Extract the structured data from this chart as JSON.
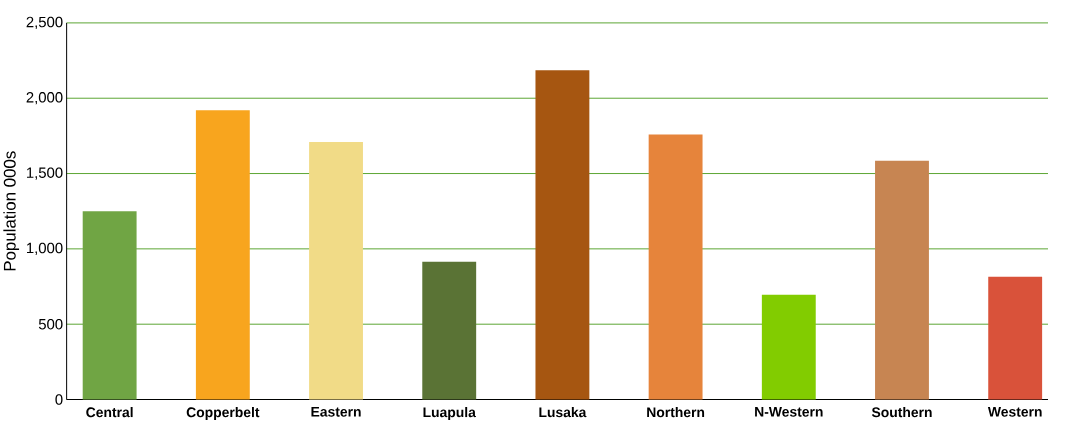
{
  "chart_data": {
    "type": "bar",
    "ylabel": "Population 000s",
    "categories": [
      "Central",
      "Copperbelt",
      "Eastern",
      "Luapula",
      "Lusaka",
      "Northern",
      "N-Western",
      "Southern",
      "Western"
    ],
    "values": [
      1250,
      1920,
      1710,
      915,
      2185,
      1760,
      695,
      1585,
      815
    ],
    "colors": [
      "#70a544",
      "#f8a51e",
      "#f1db87",
      "#5a7335",
      "#a65611",
      "#e6843b",
      "#82cc00",
      "#c78552",
      "#d9523a"
    ],
    "ylim": [
      0,
      2500
    ],
    "yticks": [
      0,
      {
        "value": 500,
        "label": "500"
      },
      {
        "value": 1000,
        "label": "1,000"
      },
      {
        "value": 1500,
        "label": "1,500"
      },
      {
        "value": 2000,
        "label": "2,000"
      },
      {
        "value": 2500,
        "label": "2,500"
      }
    ],
    "grid": "y"
  }
}
